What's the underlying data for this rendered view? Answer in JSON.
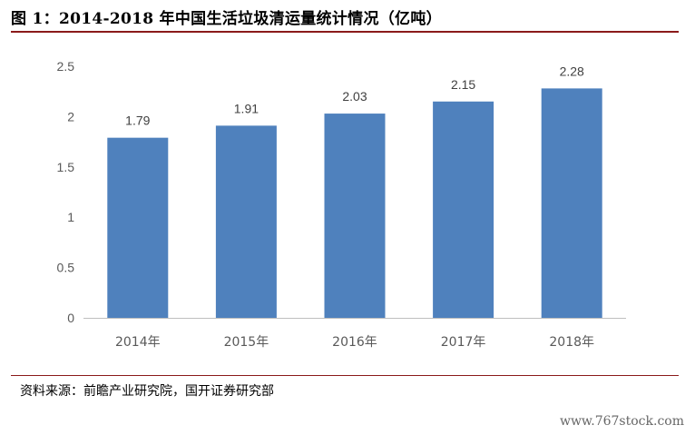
{
  "title": "图 1：2014-2018 年中国生活垃圾清运量统计情况（亿吨）",
  "source": "资料来源：前瞻产业研究院，国开证券研究部",
  "watermark": "www.767stock.com",
  "colors": {
    "bar": "#4f81bd",
    "rule": "#8b1a1a",
    "axis": "#bfbfbf"
  },
  "chart_data": {
    "type": "bar",
    "title": "图 1：2014-2018 年中国生活垃圾清运量统计情况（亿吨）",
    "categories": [
      "2014年",
      "2015年",
      "2016年",
      "2017年",
      "2018年"
    ],
    "values": [
      1.79,
      1.91,
      2.03,
      2.15,
      2.28
    ],
    "value_labels": [
      "1.79",
      "1.91",
      "2.03",
      "2.15",
      "2.28"
    ],
    "y_ticks": [
      "0",
      "0.5",
      "1",
      "1.5",
      "2",
      "2.5"
    ],
    "ylim": [
      0,
      2.5
    ],
    "xlabel": "",
    "ylabel": "",
    "grid": false,
    "legend": "none"
  }
}
